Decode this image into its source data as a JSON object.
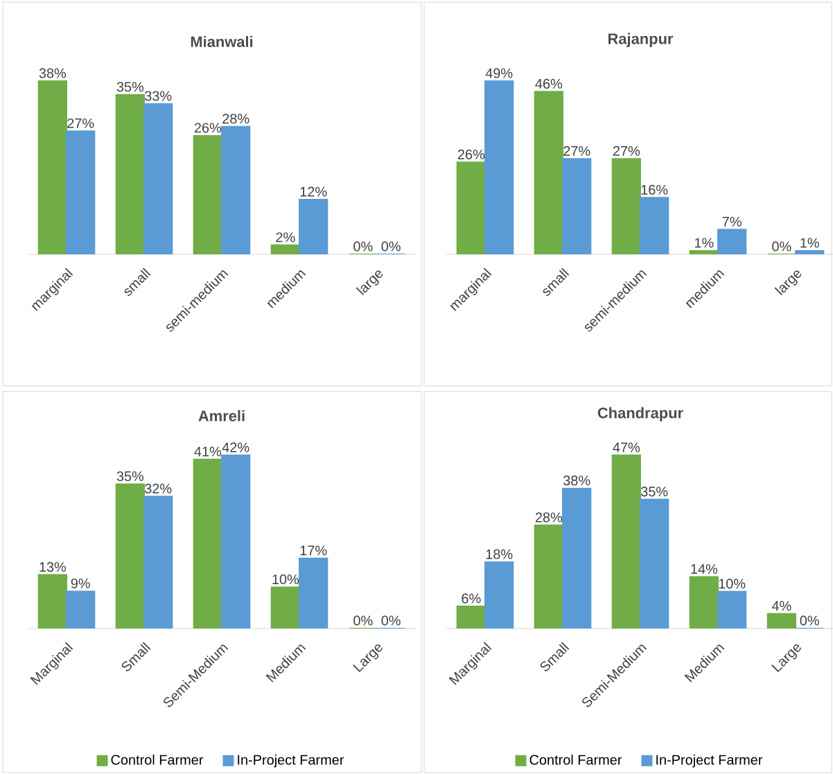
{
  "chart_data": [
    {
      "type": "bar",
      "title": "Mianwali",
      "categories": [
        "marginal",
        "small",
        "semi-medium",
        "medium",
        "large"
      ],
      "legend": false,
      "series": [
        {
          "color": "#70ad47",
          "values": [
            38,
            35,
            26,
            2,
            0
          ],
          "value_labels": [
            "38%",
            "35%",
            "26%",
            "2%",
            "0%"
          ]
        },
        {
          "color": "#5b9bd5",
          "values": [
            27,
            33,
            28,
            12,
            0
          ],
          "value_labels": [
            "27%",
            "33%",
            "28%",
            "12%",
            "0%"
          ]
        }
      ]
    },
    {
      "type": "bar",
      "title": "Rajanpur",
      "categories": [
        "marginal",
        "small",
        "semi-medium",
        "medium",
        "large"
      ],
      "legend": false,
      "series": [
        {
          "color": "#70ad47",
          "values": [
            26,
            46,
            27,
            1,
            0
          ],
          "value_labels": [
            "26%",
            "46%",
            "27%",
            "1%",
            "0%"
          ]
        },
        {
          "color": "#5b9bd5",
          "values": [
            49,
            27,
            16,
            7,
            1
          ],
          "value_labels": [
            "49%",
            "27%",
            "16%",
            "7%",
            "1%"
          ]
        }
      ]
    },
    {
      "type": "bar",
      "title": "Amreli",
      "categories": [
        "Marginal",
        "Small",
        "Semi-Medium",
        "Medium",
        "Large"
      ],
      "legend": "bottom",
      "series": [
        {
          "name": "Control Farmer",
          "color": "#70ad47",
          "values": [
            13,
            35,
            41,
            10,
            0
          ],
          "value_labels": [
            "13%",
            "35%",
            "41%",
            "10%",
            "0%"
          ]
        },
        {
          "name": "In-Project Farmer",
          "color": "#5b9bd5",
          "values": [
            9,
            32,
            42,
            17,
            0
          ],
          "value_labels": [
            "9%",
            "32%",
            "42%",
            "17%",
            "0%"
          ]
        }
      ]
    },
    {
      "type": "bar",
      "title": "Chandrapur",
      "categories": [
        "Marginal",
        "Small",
        "Semi-Medium",
        "Medium",
        "Large"
      ],
      "legend": "bottom",
      "series": [
        {
          "name": "Control Farmer",
          "color": "#70ad47",
          "values": [
            6,
            28,
            47,
            14,
            4
          ],
          "value_labels": [
            "6%",
            "28%",
            "47%",
            "14%",
            "4%"
          ]
        },
        {
          "name": "In-Project Farmer",
          "color": "#5b9bd5",
          "values": [
            18,
            38,
            35,
            10,
            0
          ],
          "value_labels": [
            "18%",
            "38%",
            "35%",
            "10%",
            "0%"
          ]
        }
      ]
    }
  ]
}
